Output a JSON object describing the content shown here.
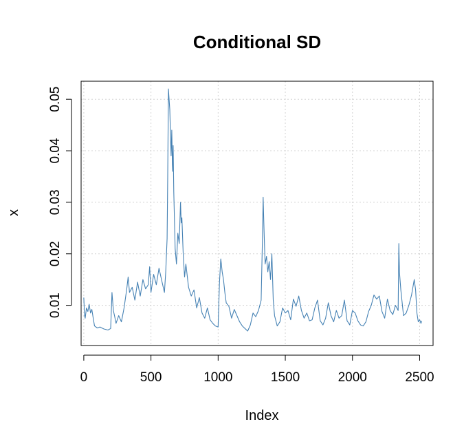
{
  "chart_data": {
    "type": "line",
    "title": "Conditional SD",
    "xlabel": "Index",
    "ylabel": "x",
    "xlim": [
      -20,
      2600
    ],
    "ylim": [
      0.0022,
      0.0535
    ],
    "xticks": [
      0,
      500,
      1000,
      1500,
      2000,
      2500
    ],
    "xtick_labels": [
      "0",
      "500",
      "1000",
      "1500",
      "2000",
      "2500"
    ],
    "yticks": [
      0.01,
      0.02,
      0.03,
      0.04,
      0.05
    ],
    "ytick_labels": [
      "0.01",
      "0.02",
      "0.03",
      "0.04",
      "0.05"
    ],
    "grid": true,
    "legend": "none",
    "series": [
      {
        "color": "#4682B4",
        "x": [
          0,
          5,
          10,
          20,
          30,
          40,
          50,
          60,
          70,
          80,
          100,
          120,
          150,
          180,
          200,
          210,
          220,
          230,
          240,
          260,
          280,
          300,
          320,
          330,
          340,
          360,
          380,
          400,
          420,
          440,
          460,
          480,
          490,
          500,
          520,
          540,
          560,
          580,
          600,
          610,
          620,
          625,
          630,
          640,
          650,
          655,
          660,
          665,
          670,
          680,
          690,
          700,
          710,
          720,
          725,
          730,
          740,
          750,
          760,
          780,
          800,
          820,
          840,
          860,
          880,
          900,
          920,
          940,
          960,
          980,
          1000,
          1010,
          1020,
          1025,
          1030,
          1040,
          1050,
          1060,
          1080,
          1100,
          1120,
          1140,
          1160,
          1180,
          1200,
          1220,
          1240,
          1260,
          1280,
          1300,
          1320,
          1330,
          1335,
          1340,
          1345,
          1350,
          1360,
          1370,
          1380,
          1390,
          1400,
          1410,
          1420,
          1440,
          1460,
          1480,
          1500,
          1520,
          1540,
          1560,
          1580,
          1600,
          1620,
          1640,
          1660,
          1680,
          1700,
          1720,
          1740,
          1760,
          1780,
          1800,
          1820,
          1840,
          1860,
          1880,
          1900,
          1920,
          1940,
          1960,
          1980,
          2000,
          2020,
          2040,
          2060,
          2080,
          2100,
          2120,
          2140,
          2160,
          2180,
          2200,
          2220,
          2240,
          2260,
          2280,
          2300,
          2320,
          2340,
          2345,
          2350,
          2360,
          2380,
          2400,
          2420,
          2440,
          2460,
          2470,
          2480,
          2490,
          2500,
          2510,
          2515
        ],
        "y": [
          0.0115,
          0.0082,
          0.0075,
          0.0095,
          0.0088,
          0.0102,
          0.0085,
          0.0092,
          0.0075,
          0.006,
          0.0056,
          0.0058,
          0.0054,
          0.0052,
          0.0055,
          0.0125,
          0.009,
          0.0078,
          0.0065,
          0.008,
          0.0068,
          0.0095,
          0.0132,
          0.0155,
          0.0125,
          0.0135,
          0.011,
          0.0145,
          0.0118,
          0.015,
          0.0132,
          0.014,
          0.0175,
          0.0125,
          0.016,
          0.014,
          0.0172,
          0.0148,
          0.0125,
          0.0165,
          0.023,
          0.035,
          0.052,
          0.048,
          0.039,
          0.044,
          0.036,
          0.041,
          0.032,
          0.021,
          0.018,
          0.024,
          0.022,
          0.03,
          0.026,
          0.027,
          0.02,
          0.0155,
          0.018,
          0.0135,
          0.0118,
          0.013,
          0.0095,
          0.0115,
          0.0085,
          0.0075,
          0.0095,
          0.0072,
          0.0065,
          0.006,
          0.0058,
          0.0145,
          0.019,
          0.0178,
          0.0165,
          0.015,
          0.0125,
          0.0105,
          0.0098,
          0.0075,
          0.0092,
          0.008,
          0.0068,
          0.006,
          0.0055,
          0.005,
          0.0062,
          0.0085,
          0.0078,
          0.009,
          0.011,
          0.023,
          0.031,
          0.026,
          0.022,
          0.018,
          0.0195,
          0.0165,
          0.0185,
          0.015,
          0.02,
          0.011,
          0.008,
          0.006,
          0.0068,
          0.0095,
          0.0085,
          0.009,
          0.0072,
          0.0112,
          0.0098,
          0.0118,
          0.009,
          0.0075,
          0.0085,
          0.007,
          0.0072,
          0.0095,
          0.011,
          0.007,
          0.0062,
          0.0075,
          0.0105,
          0.008,
          0.0068,
          0.009,
          0.0075,
          0.008,
          0.011,
          0.007,
          0.0062,
          0.009,
          0.0085,
          0.007,
          0.0062,
          0.006,
          0.0068,
          0.0088,
          0.01,
          0.012,
          0.0112,
          0.0118,
          0.0088,
          0.0075,
          0.0112,
          0.009,
          0.0082,
          0.01,
          0.009,
          0.022,
          0.0165,
          0.013,
          0.008,
          0.0085,
          0.01,
          0.012,
          0.015,
          0.013,
          0.0085,
          0.0068,
          0.0072,
          0.0065,
          0.007
        ]
      }
    ]
  }
}
